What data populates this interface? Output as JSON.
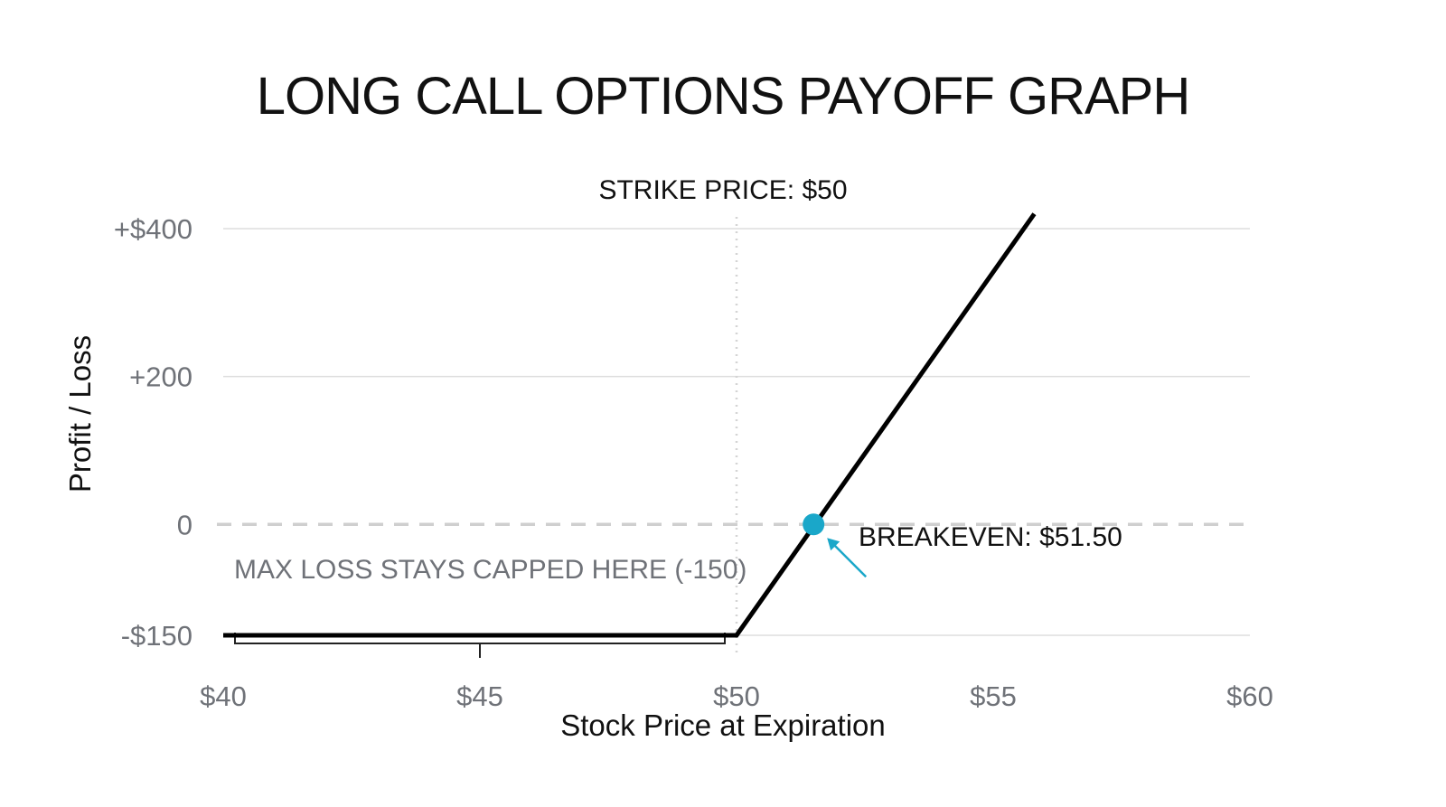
{
  "chart_data": {
    "type": "line",
    "title": "LONG CALL OPTIONS PAYOFF GRAPH",
    "xlabel": "Stock Price at Expiration",
    "ylabel": "Profit / Loss",
    "xlim": [
      40,
      60
    ],
    "ylim": [
      -150,
      400
    ],
    "x_ticks": [
      {
        "value": 40,
        "label": "$40"
      },
      {
        "value": 45,
        "label": "$45"
      },
      {
        "value": 50,
        "label": "$50"
      },
      {
        "value": 55,
        "label": "$55"
      },
      {
        "value": 60,
        "label": "$60"
      }
    ],
    "y_ticks": [
      {
        "value": 400,
        "label": "+$400"
      },
      {
        "value": 200,
        "label": "+200"
      },
      {
        "value": 0,
        "label": "0"
      },
      {
        "value": -150,
        "label": "-$150"
      }
    ],
    "grid": true,
    "series": [
      {
        "x": [
          40,
          50,
          55.8
        ],
        "y": [
          -150,
          -150,
          420
        ],
        "color": "#000000"
      }
    ],
    "strike_price": 50,
    "breakeven": 51.5,
    "max_loss": -150,
    "colors": {
      "line": "#000000",
      "breakeven_marker": "#1aa7c9",
      "grid": "#dddddd",
      "tick_text": "#6f7278"
    },
    "annotations": {
      "strike": "STRIKE PRICE: $50",
      "breakeven": "BREAKEVEN: $51.50",
      "max_loss": "MAX LOSS STAYS CAPPED HERE (-150)"
    }
  }
}
